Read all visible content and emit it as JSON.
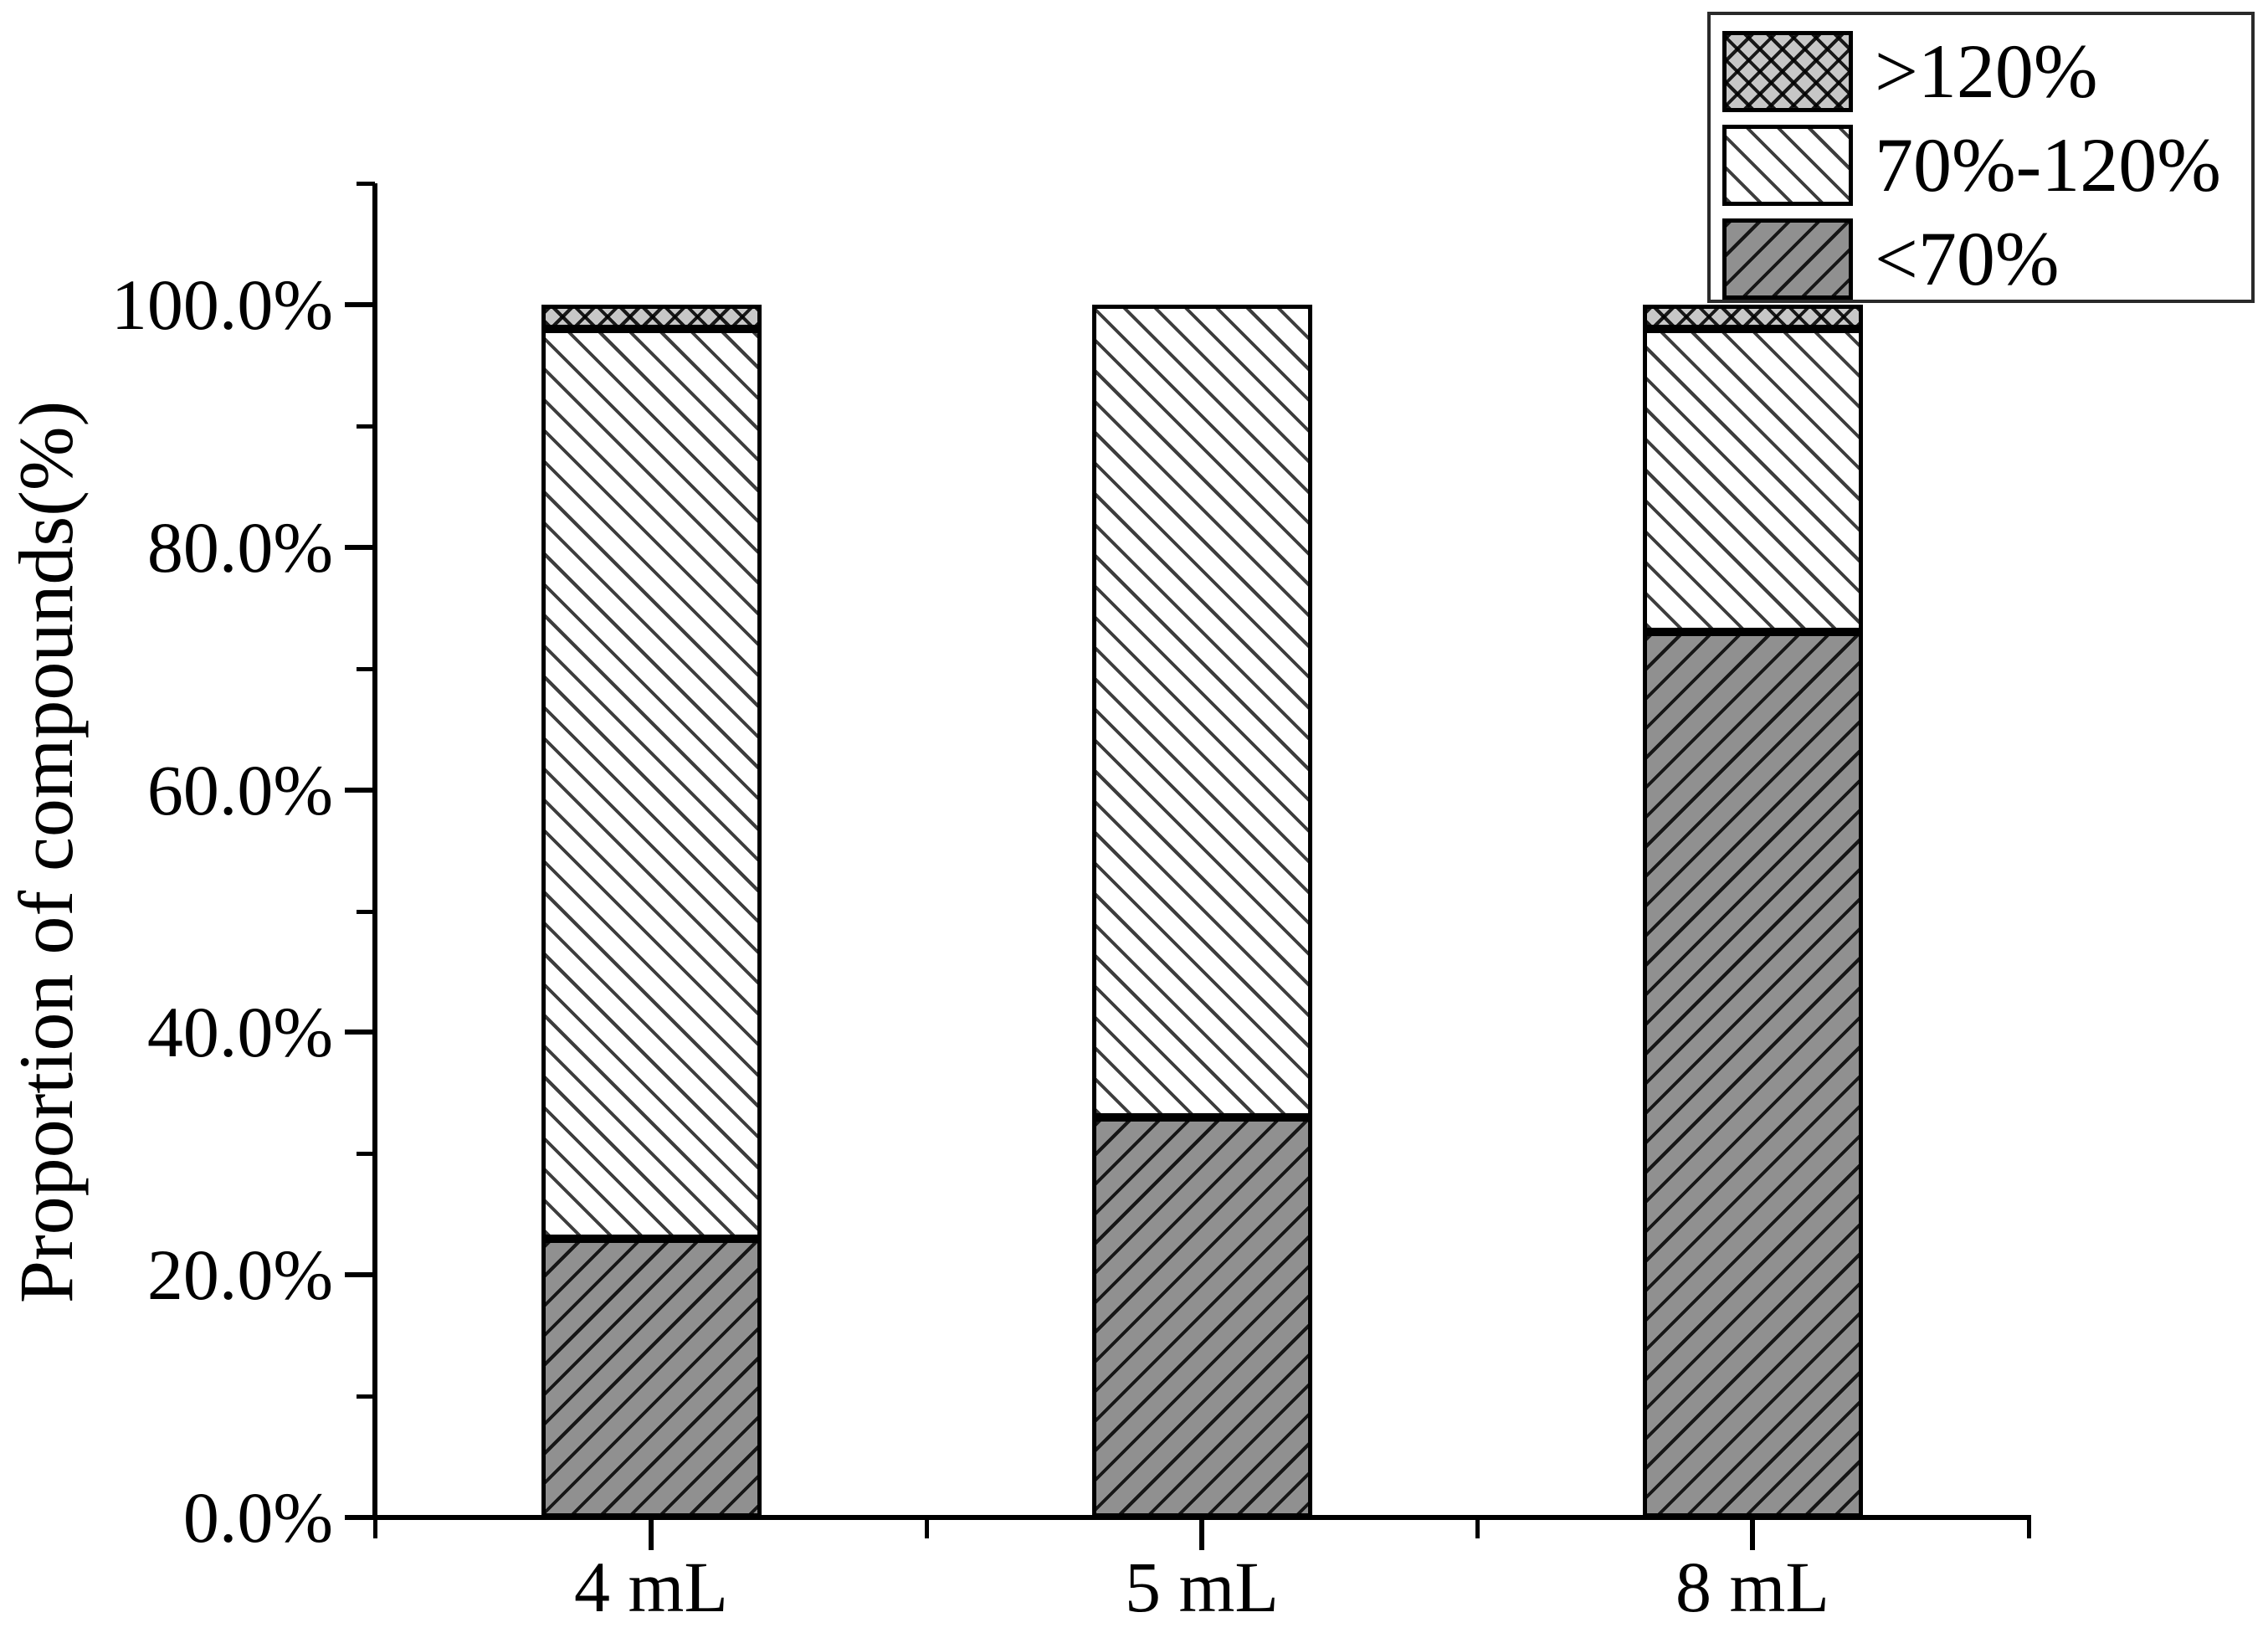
{
  "figure": {
    "y_axis": {
      "title": "Proportion of compounds(%)",
      "tick_labels": [
        "100.0%",
        "80.0%",
        "60.0%",
        "40.0%",
        "20.0%",
        "0.0%"
      ],
      "tick_values": [
        100,
        80,
        60,
        40,
        20,
        0
      ],
      "minor_tick_values": [
        110,
        90,
        70,
        50,
        30,
        10
      ]
    },
    "x_axis": {
      "tick_labels": [
        "4 mL",
        "5 mL",
        "8 mL"
      ]
    },
    "legend": {
      "items": [
        {
          "label": ">120%",
          "pattern": "crosshatch"
        },
        {
          "label": "70%-120%",
          "pattern": "diagonal-down-white"
        },
        {
          "label": "<70%",
          "pattern": "diagonal-up-gray"
        }
      ]
    }
  },
  "chart_data": {
    "type": "bar",
    "subtype": "stacked",
    "categories": [
      "4 mL",
      "5 mL",
      "8 mL"
    ],
    "series": [
      {
        "name": ">120%",
        "pattern": "crosshatch",
        "values": [
          2,
          0,
          2
        ]
      },
      {
        "name": "70%-120%",
        "pattern": "diagonal-down-white",
        "values": [
          75,
          67,
          25
        ]
      },
      {
        "name": "<70%",
        "pattern": "diagonal-up-gray",
        "values": [
          23,
          33,
          73
        ]
      }
    ],
    "title": "",
    "xlabel": "",
    "ylabel": "Proportion of compounds(%)",
    "ylim": [
      0,
      110
    ],
    "y_tick_step": 20,
    "y_minor_tick_step": 10,
    "grid": false,
    "legend_position": "top-right",
    "colors": {
      "bar_gray_fill": "#909090",
      "crosshatch_fill": "#c7c7c7",
      "hatch_line": "#000000",
      "axis": "#000000",
      "background": "#ffffff"
    }
  }
}
